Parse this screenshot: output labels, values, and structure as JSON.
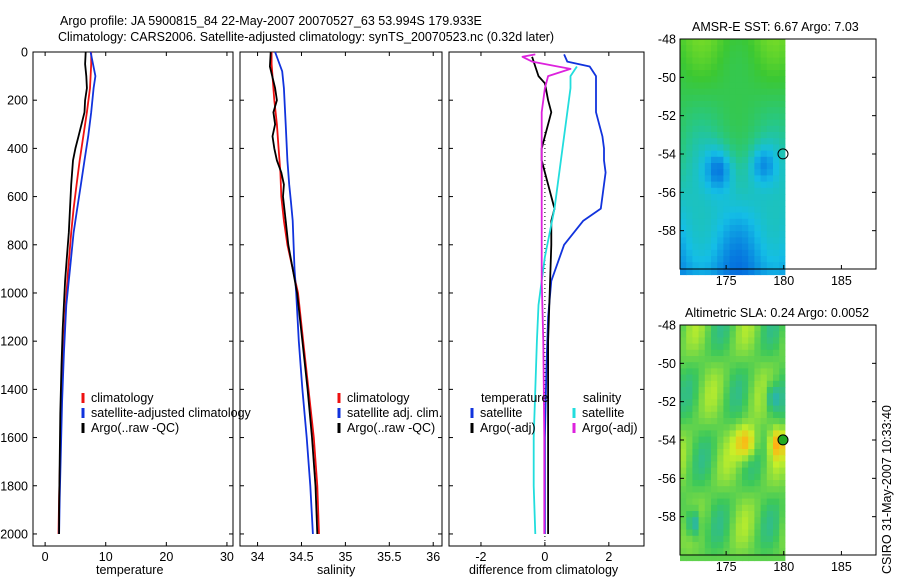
{
  "header": {
    "line1": "Argo profile: JA 5900815_84 22-May-2007 20070527_63 53.994S 179.933E",
    "line2": "Climatology: CARS2006. Satellite-adjusted climatology: synTS_20070523.nc (0.32d later)"
  },
  "footer": {
    "credit": "CSIRO 31-May-2007 10:33:40"
  },
  "colors": {
    "climatology": "#ee1111",
    "satellite": "#1133dd",
    "argo": "#000000",
    "cyan": "#22dddd",
    "magenta": "#dd22dd",
    "zero_line": "#000000"
  },
  "chart_data": [
    {
      "type": "line",
      "xlabel": "temperature",
      "ylabel": "",
      "xlim": [
        -2,
        31
      ],
      "ylim": [
        2050,
        0
      ],
      "xticks": [
        0,
        10,
        20,
        30
      ],
      "yticks": [
        0,
        200,
        400,
        600,
        800,
        1000,
        1200,
        1400,
        1600,
        1800,
        2000
      ],
      "legend": [
        "climatology",
        "satellite-adjusted climatology",
        "Argo(..raw -QC)"
      ],
      "series": [
        {
          "name": "climatology",
          "color": "#ee1111",
          "points": [
            [
              7.6,
              0
            ],
            [
              7.6,
              50
            ],
            [
              7.4,
              150
            ],
            [
              6.9,
              250
            ],
            [
              6.3,
              350
            ],
            [
              5.7,
              450
            ],
            [
              5.2,
              550
            ],
            [
              4.7,
              650
            ],
            [
              4.3,
              750
            ],
            [
              3.8,
              900
            ],
            [
              3.4,
              1050
            ],
            [
              3.0,
              1250
            ],
            [
              2.7,
              1450
            ],
            [
              2.5,
              1650
            ],
            [
              2.3,
              1850
            ],
            [
              2.2,
              2000
            ]
          ]
        },
        {
          "name": "satellite-adjusted climatology",
          "color": "#1133dd",
          "points": [
            [
              7.5,
              0
            ],
            [
              7.9,
              50
            ],
            [
              8.3,
              100
            ],
            [
              8.0,
              150
            ],
            [
              7.6,
              250
            ],
            [
              7.1,
              350
            ],
            [
              6.5,
              450
            ],
            [
              5.9,
              550
            ],
            [
              5.3,
              650
            ],
            [
              4.7,
              750
            ],
            [
              4.1,
              900
            ],
            [
              3.5,
              1050
            ],
            [
              3.1,
              1250
            ],
            [
              2.8,
              1450
            ],
            [
              2.6,
              1650
            ],
            [
              2.4,
              1850
            ],
            [
              2.3,
              2000
            ]
          ]
        },
        {
          "name": "Argo(..raw -QC)",
          "color": "#000000",
          "points": [
            [
              6.7,
              0
            ],
            [
              6.6,
              50
            ],
            [
              6.8,
              100
            ],
            [
              6.9,
              150
            ],
            [
              6.6,
              200
            ],
            [
              6.5,
              250
            ],
            [
              6.0,
              300
            ],
            [
              5.5,
              350
            ],
            [
              5.0,
              400
            ],
            [
              4.6,
              450
            ],
            [
              4.3,
              550
            ],
            [
              4.1,
              650
            ],
            [
              3.9,
              750
            ],
            [
              3.6,
              850
            ],
            [
              3.3,
              950
            ],
            [
              3.1,
              1050
            ],
            [
              2.9,
              1150
            ],
            [
              2.7,
              1300
            ],
            [
              2.5,
              1500
            ],
            [
              2.4,
              1700
            ],
            [
              2.3,
              1900
            ],
            [
              2.3,
              2000
            ]
          ]
        }
      ]
    },
    {
      "type": "line",
      "xlabel": "salinity",
      "ylabel": "",
      "xlim": [
        33.8,
        36.1
      ],
      "ylim": [
        2050,
        0
      ],
      "xticks": [
        34,
        34.5,
        35,
        35.5,
        36
      ],
      "yticks": [
        0,
        200,
        400,
        600,
        800,
        1000,
        1200,
        1400,
        1600,
        1800,
        2000
      ],
      "legend": [
        "climatology",
        "satellite adj. clim.",
        "Argo(..raw -QC)"
      ],
      "series": [
        {
          "name": "climatology",
          "color": "#ee1111",
          "points": [
            [
              34.16,
              0
            ],
            [
              34.16,
              50
            ],
            [
              34.17,
              100
            ],
            [
              34.19,
              200
            ],
            [
              34.22,
              300
            ],
            [
              34.24,
              400
            ],
            [
              34.26,
              500
            ],
            [
              34.27,
              600
            ],
            [
              34.3,
              700
            ],
            [
              34.34,
              800
            ],
            [
              34.4,
              900
            ],
            [
              34.46,
              1000
            ],
            [
              34.52,
              1200
            ],
            [
              34.58,
              1400
            ],
            [
              34.64,
              1600
            ],
            [
              34.68,
              1800
            ],
            [
              34.7,
              2000
            ]
          ]
        },
        {
          "name": "satellite adj. clim.",
          "color": "#1133dd",
          "points": [
            [
              34.2,
              0
            ],
            [
              34.25,
              50
            ],
            [
              34.28,
              80
            ],
            [
              34.3,
              150
            ],
            [
              34.32,
              300
            ],
            [
              34.34,
              450
            ],
            [
              34.36,
              550
            ],
            [
              34.38,
              620
            ],
            [
              34.4,
              700
            ],
            [
              34.41,
              800
            ],
            [
              34.42,
              900
            ],
            [
              34.44,
              1000
            ],
            [
              34.47,
              1200
            ],
            [
              34.51,
              1400
            ],
            [
              34.56,
              1600
            ],
            [
              34.6,
              1800
            ],
            [
              34.63,
              2000
            ]
          ]
        },
        {
          "name": "Argo(..raw -QC)",
          "color": "#000000",
          "points": [
            [
              34.15,
              0
            ],
            [
              34.14,
              60
            ],
            [
              34.2,
              150
            ],
            [
              34.22,
              200
            ],
            [
              34.18,
              250
            ],
            [
              34.2,
              300
            ],
            [
              34.17,
              350
            ],
            [
              34.19,
              400
            ],
            [
              34.22,
              450
            ],
            [
              34.27,
              500
            ],
            [
              34.3,
              550
            ],
            [
              34.29,
              600
            ],
            [
              34.32,
              700
            ],
            [
              34.35,
              800
            ],
            [
              34.4,
              900
            ],
            [
              34.45,
              1000
            ],
            [
              34.51,
              1200
            ],
            [
              34.57,
              1400
            ],
            [
              34.62,
              1600
            ],
            [
              34.66,
              1800
            ],
            [
              34.68,
              2000
            ]
          ]
        }
      ]
    },
    {
      "type": "line",
      "xlabel": "difference from climatology",
      "ylabel": "",
      "xlim": [
        -3,
        3.1
      ],
      "ylim": [
        2050,
        0
      ],
      "xticks": [
        -2,
        0,
        2
      ],
      "yticks": [
        0,
        200,
        400,
        600,
        800,
        1000,
        1200,
        1400,
        1600,
        1800,
        2000
      ],
      "legend_groups": [
        {
          "title": "temperature",
          "items": [
            "satellite",
            "Argo(-adj)"
          ]
        },
        {
          "title": "salinity",
          "items": [
            "satellite",
            "Argo(-adj)"
          ]
        }
      ],
      "series": [
        {
          "name": "temperature satellite",
          "color": "#1133dd",
          "points": [
            [
              0.6,
              10
            ],
            [
              0.7,
              40
            ],
            [
              1.4,
              60
            ],
            [
              1.6,
              100
            ],
            [
              1.6,
              150
            ],
            [
              1.6,
              250
            ],
            [
              1.7,
              300
            ],
            [
              1.8,
              350
            ],
            [
              1.85,
              400
            ],
            [
              1.85,
              450
            ],
            [
              1.9,
              500
            ],
            [
              1.85,
              550
            ],
            [
              1.8,
              600
            ],
            [
              1.75,
              650
            ],
            [
              1.2,
              700
            ],
            [
              0.6,
              800
            ],
            [
              0.2,
              950
            ],
            [
              0.1,
              1100
            ],
            [
              0.05,
              1300
            ],
            [
              0.0,
              1600
            ],
            [
              0.0,
              2000
            ]
          ]
        },
        {
          "name": "temperature Argo(-adj)",
          "color": "#000000",
          "points": [
            [
              -0.4,
              20
            ],
            [
              -0.3,
              60
            ],
            [
              -0.2,
              100
            ],
            [
              0.0,
              130
            ],
            [
              0.1,
              200
            ],
            [
              0.2,
              250
            ],
            [
              0.1,
              300
            ],
            [
              0.0,
              350
            ],
            [
              -0.1,
              400
            ],
            [
              -0.1,
              450
            ],
            [
              0.0,
              500
            ],
            [
              0.1,
              550
            ],
            [
              0.2,
              600
            ],
            [
              0.3,
              650
            ],
            [
              0.2,
              700
            ],
            [
              0.2,
              800
            ],
            [
              0.15,
              1000
            ],
            [
              0.1,
              1200
            ],
            [
              0.1,
              1600
            ],
            [
              0.1,
              2000
            ]
          ]
        },
        {
          "name": "salinity satellite",
          "color": "#22dddd",
          "points": [
            [
              1.0,
              60
            ],
            [
              0.8,
              100
            ],
            [
              0.8,
              150
            ],
            [
              0.7,
              250
            ],
            [
              0.6,
              350
            ],
            [
              0.5,
              450
            ],
            [
              0.4,
              550
            ],
            [
              0.3,
              650
            ],
            [
              0.15,
              750
            ],
            [
              0.0,
              850
            ],
            [
              -0.1,
              950
            ],
            [
              -0.2,
              1050
            ],
            [
              -0.25,
              1200
            ],
            [
              -0.3,
              1400
            ],
            [
              -0.35,
              1600
            ],
            [
              -0.35,
              1800
            ],
            [
              -0.3,
              2000
            ]
          ]
        },
        {
          "name": "salinity Argo(-adj)",
          "color": "#dd22dd",
          "points": [
            [
              -0.3,
              10
            ],
            [
              -0.7,
              20
            ],
            [
              -0.4,
              40
            ],
            [
              0.4,
              60
            ],
            [
              0.8,
              70
            ],
            [
              0.1,
              100
            ],
            [
              0.0,
              150
            ],
            [
              -0.1,
              250
            ],
            [
              -0.1,
              350
            ],
            [
              -0.1,
              450
            ],
            [
              -0.1,
              550
            ],
            [
              -0.1,
              650
            ],
            [
              -0.1,
              750
            ],
            [
              -0.1,
              850
            ],
            [
              -0.1,
              950
            ],
            [
              -0.05,
              1200
            ],
            [
              -0.02,
              1600
            ],
            [
              -0.02,
              2000
            ]
          ]
        }
      ]
    },
    {
      "type": "heatmap",
      "title": "AMSR-E SST: 6.67 Argo: 7.03",
      "xlim": [
        171,
        188
      ],
      "ylim": [
        -60,
        -48
      ],
      "xticks": [
        175,
        180,
        185
      ],
      "yticks": [
        -48,
        -50,
        -52,
        -54,
        -56,
        -58
      ],
      "marker": {
        "lon": 179.933,
        "lat": -53.994
      }
    },
    {
      "type": "heatmap",
      "title": "Altimetric SLA: 0.24 Argo: 0.0052",
      "xlim": [
        171,
        188
      ],
      "ylim": [
        -60,
        -48
      ],
      "xticks": [
        175,
        180,
        185
      ],
      "yticks": [
        -48,
        -50,
        -52,
        -54,
        -56,
        -58
      ],
      "marker": {
        "lon": 179.933,
        "lat": -53.994
      }
    }
  ]
}
